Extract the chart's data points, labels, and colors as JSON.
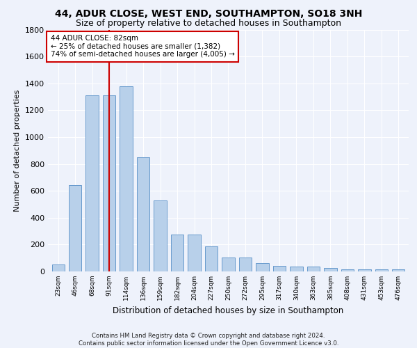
{
  "title": "44, ADUR CLOSE, WEST END, SOUTHAMPTON, SO18 3NH",
  "subtitle": "Size of property relative to detached houses in Southampton",
  "xlabel": "Distribution of detached houses by size in Southampton",
  "ylabel": "Number of detached properties",
  "footer": "Contains HM Land Registry data © Crown copyright and database right 2024.\nContains public sector information licensed under the Open Government Licence v3.0.",
  "categories": [
    "23sqm",
    "46sqm",
    "68sqm",
    "91sqm",
    "114sqm",
    "136sqm",
    "159sqm",
    "182sqm",
    "204sqm",
    "227sqm",
    "250sqm",
    "272sqm",
    "295sqm",
    "317sqm",
    "340sqm",
    "363sqm",
    "385sqm",
    "408sqm",
    "431sqm",
    "453sqm",
    "476sqm"
  ],
  "values": [
    50,
    640,
    1310,
    1310,
    1380,
    848,
    530,
    275,
    275,
    185,
    105,
    105,
    60,
    40,
    38,
    35,
    28,
    15,
    15,
    15,
    15
  ],
  "bar_color": "#b8d0ea",
  "bar_edge_color": "#6699cc",
  "highlight_line_color": "#cc0000",
  "annotation_text": "44 ADUR CLOSE: 82sqm\n← 25% of detached houses are smaller (1,382)\n74% of semi-detached houses are larger (4,005) →",
  "annotation_box_color": "#cc0000",
  "property_line_x": 3,
  "ylim": [
    0,
    1800
  ],
  "yticks": [
    0,
    200,
    400,
    600,
    800,
    1000,
    1200,
    1400,
    1600,
    1800
  ],
  "background_color": "#eef2fb",
  "grid_color": "#ffffff",
  "title_fontsize": 10,
  "subtitle_fontsize": 9
}
